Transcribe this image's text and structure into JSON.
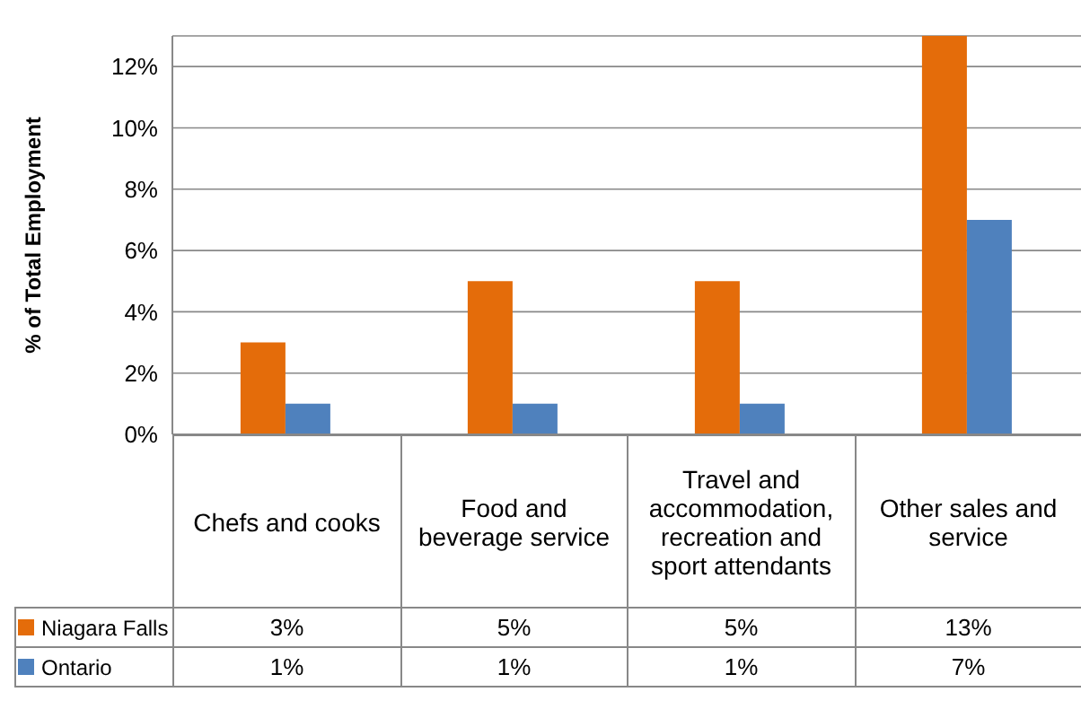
{
  "chart_data": {
    "type": "bar",
    "ylabel": "% of Total Employment",
    "categories": [
      "Chefs and cooks",
      "Food and beverage service",
      "Travel and accommodation, recreation and sport attendants",
      "Other sales and service"
    ],
    "series": [
      {
        "name": "Niagara Falls",
        "color": "#e46c0a",
        "values": [
          3,
          5,
          5,
          13
        ],
        "value_labels": [
          "3%",
          "5%",
          "5%",
          "13%"
        ]
      },
      {
        "name": "Ontario",
        "color": "#4f81bd",
        "values": [
          1,
          1,
          1,
          7
        ],
        "value_labels": [
          "1%",
          "1%",
          "1%",
          "7%"
        ]
      }
    ],
    "ylim": [
      0,
      13
    ],
    "yticks": [
      {
        "value": 0,
        "label": "0%"
      },
      {
        "value": 2,
        "label": "2%"
      },
      {
        "value": 4,
        "label": "4%"
      },
      {
        "value": 6,
        "label": "6%"
      },
      {
        "value": 8,
        "label": "8%"
      },
      {
        "value": 10,
        "label": "10%"
      },
      {
        "value": 12,
        "label": "12%"
      }
    ],
    "grid": "y",
    "legend": "bottom"
  }
}
